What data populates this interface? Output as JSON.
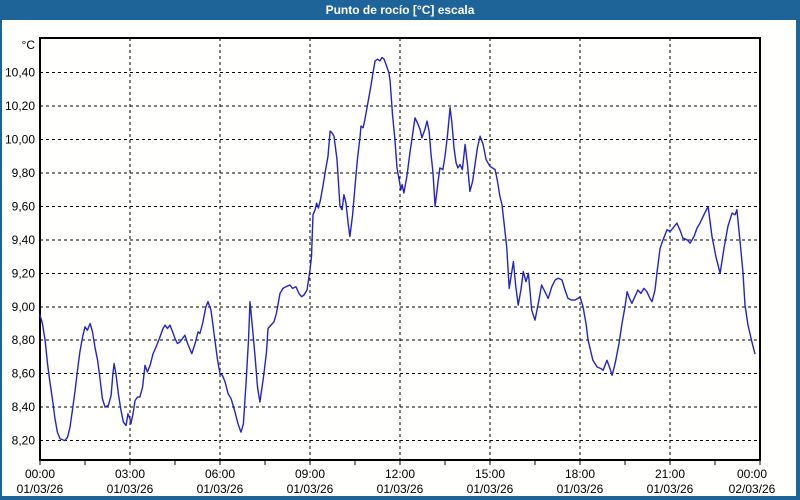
{
  "window": {
    "title": "Punto de rocío [°C] escala"
  },
  "chart_data": {
    "type": "line",
    "title": "Punto de rocío [°C] escala",
    "unit_label": "°C",
    "legend_position": "none",
    "grid": true,
    "y_axis": {
      "min": 8.2,
      "max": 10.4,
      "step": 0.2,
      "tick_labels": [
        "10,40",
        "10,20",
        "10,00",
        "9,80",
        "9,60",
        "9,40",
        "9,20",
        "9,00",
        "8,80",
        "8,60",
        "8,40",
        "8,20"
      ]
    },
    "x_axis": {
      "minor_tick_interval_hours": 1.5,
      "ticks": [
        {
          "hour": 0,
          "time": "00:00",
          "date": "01/03/26"
        },
        {
          "hour": 3,
          "time": "03:00",
          "date": "01/03/26"
        },
        {
          "hour": 6,
          "time": "06:00",
          "date": "01/03/26"
        },
        {
          "hour": 9,
          "time": "09:00",
          "date": "01/03/26"
        },
        {
          "hour": 12,
          "time": "12:00",
          "date": "01/03/26"
        },
        {
          "hour": 15,
          "time": "15:00",
          "date": "01/03/26"
        },
        {
          "hour": 18,
          "time": "18:00",
          "date": "01/03/26"
        },
        {
          "hour": 21,
          "time": "21:00",
          "date": "01/03/26"
        },
        {
          "hour": 24,
          "time": "00:00",
          "date": "02/03/26"
        }
      ]
    },
    "colors": {
      "line": "#2323c8",
      "grid": "#000000",
      "frame": "#000000",
      "titlebar": "#1e6499",
      "title_text": "#ffffff",
      "background": "#fffffe",
      "text": "#000000"
    },
    "series": [
      {
        "name": "Punto de rocío",
        "points": [
          [
            0,
            8.95
          ],
          [
            0.08,
            8.9
          ],
          [
            0.17,
            8.8
          ],
          [
            0.25,
            8.66
          ],
          [
            0.33,
            8.55
          ],
          [
            0.42,
            8.44
          ],
          [
            0.5,
            8.33
          ],
          [
            0.58,
            8.25
          ],
          [
            0.67,
            8.21
          ],
          [
            0.83,
            8.2
          ],
          [
            0.92,
            8.22
          ],
          [
            1,
            8.28
          ],
          [
            1.08,
            8.38
          ],
          [
            1.17,
            8.5
          ],
          [
            1.25,
            8.62
          ],
          [
            1.33,
            8.73
          ],
          [
            1.42,
            8.82
          ],
          [
            1.5,
            8.88
          ],
          [
            1.58,
            8.86
          ],
          [
            1.67,
            8.9
          ],
          [
            1.75,
            8.85
          ],
          [
            1.83,
            8.76
          ],
          [
            1.92,
            8.68
          ],
          [
            2,
            8.57
          ],
          [
            2.08,
            8.45
          ],
          [
            2.17,
            8.4
          ],
          [
            2.28,
            8.41
          ],
          [
            2.37,
            8.47
          ],
          [
            2.43,
            8.6
          ],
          [
            2.47,
            8.66
          ],
          [
            2.53,
            8.6
          ],
          [
            2.62,
            8.47
          ],
          [
            2.7,
            8.38
          ],
          [
            2.78,
            8.31
          ],
          [
            2.87,
            8.29
          ],
          [
            2.93,
            8.36
          ],
          [
            3,
            8.33
          ],
          [
            3.03,
            8.3
          ],
          [
            3.1,
            8.36
          ],
          [
            3.17,
            8.44
          ],
          [
            3.25,
            8.46
          ],
          [
            3.33,
            8.46
          ],
          [
            3.42,
            8.52
          ],
          [
            3.5,
            8.65
          ],
          [
            3.58,
            8.61
          ],
          [
            3.67,
            8.65
          ],
          [
            3.77,
            8.72
          ],
          [
            3.87,
            8.76
          ],
          [
            4,
            8.82
          ],
          [
            4.1,
            8.87
          ],
          [
            4.17,
            8.89
          ],
          [
            4.25,
            8.87
          ],
          [
            4.33,
            8.89
          ],
          [
            4.42,
            8.85
          ],
          [
            4.5,
            8.81
          ],
          [
            4.58,
            8.78
          ],
          [
            4.67,
            8.79
          ],
          [
            4.83,
            8.83
          ],
          [
            4.92,
            8.78
          ],
          [
            5.06,
            8.72
          ],
          [
            5.17,
            8.78
          ],
          [
            5.27,
            8.85
          ],
          [
            5.33,
            8.84
          ],
          [
            5.42,
            8.9
          ],
          [
            5.53,
            9
          ],
          [
            5.6,
            9.03
          ],
          [
            5.7,
            8.98
          ],
          [
            5.83,
            8.8
          ],
          [
            5.92,
            8.68
          ],
          [
            6,
            8.6
          ],
          [
            6.08,
            8.59
          ],
          [
            6.17,
            8.55
          ],
          [
            6.27,
            8.48
          ],
          [
            6.37,
            8.45
          ],
          [
            6.5,
            8.37
          ],
          [
            6.6,
            8.3
          ],
          [
            6.7,
            8.25
          ],
          [
            6.78,
            8.3
          ],
          [
            6.87,
            8.55
          ],
          [
            6.95,
            8.8
          ],
          [
            7,
            9.03
          ],
          [
            7.08,
            8.88
          ],
          [
            7.17,
            8.7
          ],
          [
            7.25,
            8.52
          ],
          [
            7.33,
            8.43
          ],
          [
            7.45,
            8.58
          ],
          [
            7.55,
            8.73
          ],
          [
            7.6,
            8.87
          ],
          [
            7.7,
            8.89
          ],
          [
            7.8,
            8.91
          ],
          [
            7.88,
            8.96
          ],
          [
            7.95,
            9.03
          ],
          [
            8,
            9.08
          ],
          [
            8.1,
            9.11
          ],
          [
            8.2,
            9.12
          ],
          [
            8.33,
            9.13
          ],
          [
            8.42,
            9.11
          ],
          [
            8.53,
            9.12
          ],
          [
            8.63,
            9.08
          ],
          [
            8.72,
            9.06
          ],
          [
            8.8,
            9.07
          ],
          [
            8.9,
            9.1
          ],
          [
            9,
            9.22
          ],
          [
            9.05,
            9.3
          ],
          [
            9.1,
            9.55
          ],
          [
            9.17,
            9.58
          ],
          [
            9.22,
            9.62
          ],
          [
            9.28,
            9.59
          ],
          [
            9.35,
            9.64
          ],
          [
            9.43,
            9.72
          ],
          [
            9.52,
            9.82
          ],
          [
            9.6,
            9.9
          ],
          [
            9.67,
            10.05
          ],
          [
            9.73,
            10.04
          ],
          [
            9.8,
            10.02
          ],
          [
            9.9,
            9.88
          ],
          [
            10,
            9.6
          ],
          [
            10.07,
            9.58
          ],
          [
            10.13,
            9.67
          ],
          [
            10.2,
            9.62
          ],
          [
            10.27,
            9.5
          ],
          [
            10.33,
            9.42
          ],
          [
            10.42,
            9.55
          ],
          [
            10.5,
            9.72
          ],
          [
            10.58,
            9.88
          ],
          [
            10.67,
            10.02
          ],
          [
            10.7,
            10.08
          ],
          [
            10.77,
            10.07
          ],
          [
            10.83,
            10.12
          ],
          [
            10.93,
            10.22
          ],
          [
            11.03,
            10.32
          ],
          [
            11.1,
            10.4
          ],
          [
            11.17,
            10.47
          ],
          [
            11.25,
            10.48
          ],
          [
            11.33,
            10.47
          ],
          [
            11.4,
            10.49
          ],
          [
            11.47,
            10.48
          ],
          [
            11.55,
            10.44
          ],
          [
            11.63,
            10.4
          ],
          [
            11.67,
            10.35
          ],
          [
            11.75,
            10.15
          ],
          [
            11.83,
            10
          ],
          [
            11.9,
            9.83
          ],
          [
            11.97,
            9.76
          ],
          [
            12.03,
            9.7
          ],
          [
            12.07,
            9.73
          ],
          [
            12.13,
            9.68
          ],
          [
            12.23,
            9.78
          ],
          [
            12.33,
            9.92
          ],
          [
            12.42,
            10.03
          ],
          [
            12.5,
            10.13
          ],
          [
            12.58,
            10.1
          ],
          [
            12.67,
            10.06
          ],
          [
            12.73,
            10.01
          ],
          [
            12.83,
            10.06
          ],
          [
            12.9,
            10.11
          ],
          [
            12.97,
            10.05
          ],
          [
            13.03,
            9.92
          ],
          [
            13.1,
            9.8
          ],
          [
            13.17,
            9.6
          ],
          [
            13.27,
            9.75
          ],
          [
            13.33,
            9.83
          ],
          [
            13.43,
            9.82
          ],
          [
            13.5,
            9.9
          ],
          [
            13.58,
            10.02
          ],
          [
            13.67,
            10.19
          ],
          [
            13.73,
            10.1
          ],
          [
            13.8,
            9.95
          ],
          [
            13.87,
            9.86
          ],
          [
            13.93,
            9.83
          ],
          [
            14,
            9.85
          ],
          [
            14.08,
            9.82
          ],
          [
            14.17,
            9.97
          ],
          [
            14.25,
            9.85
          ],
          [
            14.33,
            9.69
          ],
          [
            14.42,
            9.75
          ],
          [
            14.5,
            9.85
          ],
          [
            14.58,
            9.95
          ],
          [
            14.67,
            10.02
          ],
          [
            14.77,
            9.97
          ],
          [
            14.87,
            9.88
          ],
          [
            15,
            9.84
          ],
          [
            15.08,
            9.83
          ],
          [
            15.17,
            9.82
          ],
          [
            15.25,
            9.75
          ],
          [
            15.33,
            9.66
          ],
          [
            15.4,
            9.61
          ],
          [
            15.5,
            9.45
          ],
          [
            15.56,
            9.35
          ],
          [
            15.64,
            9.11
          ],
          [
            15.78,
            9.27
          ],
          [
            15.86,
            9.12
          ],
          [
            15.94,
            9.01
          ],
          [
            16.03,
            9.1
          ],
          [
            16.11,
            9.21
          ],
          [
            16.2,
            9.15
          ],
          [
            16.28,
            9.2
          ],
          [
            16.39,
            8.98
          ],
          [
            16.5,
            8.92
          ],
          [
            16.61,
            9.02
          ],
          [
            16.72,
            9.13
          ],
          [
            16.83,
            9.09
          ],
          [
            16.94,
            9.05
          ],
          [
            17.06,
            9.12
          ],
          [
            17.17,
            9.16
          ],
          [
            17.28,
            9.17
          ],
          [
            17.4,
            9.16
          ],
          [
            17.5,
            9.1
          ],
          [
            17.6,
            9.05
          ],
          [
            17.72,
            9.04
          ],
          [
            17.83,
            9.04
          ],
          [
            17.93,
            9.05
          ],
          [
            18,
            9.06
          ],
          [
            18.1,
            9
          ],
          [
            18.2,
            8.9
          ],
          [
            18.27,
            8.8
          ],
          [
            18.43,
            8.68
          ],
          [
            18.57,
            8.64
          ],
          [
            18.7,
            8.63
          ],
          [
            18.77,
            8.62
          ],
          [
            18.9,
            8.68
          ],
          [
            19,
            8.63
          ],
          [
            19.07,
            8.59
          ],
          [
            19.17,
            8.66
          ],
          [
            19.3,
            8.78
          ],
          [
            19.4,
            8.9
          ],
          [
            19.5,
            9
          ],
          [
            19.57,
            9.09
          ],
          [
            19.65,
            9.05
          ],
          [
            19.73,
            9.02
          ],
          [
            19.83,
            9.06
          ],
          [
            19.93,
            9.1
          ],
          [
            20.03,
            9.08
          ],
          [
            20.13,
            9.11
          ],
          [
            20.23,
            9.09
          ],
          [
            20.33,
            9.05
          ],
          [
            20.4,
            9.03
          ],
          [
            20.5,
            9.1
          ],
          [
            20.57,
            9.21
          ],
          [
            20.67,
            9.35
          ],
          [
            20.77,
            9.4
          ],
          [
            20.9,
            9.46
          ],
          [
            21,
            9.45
          ],
          [
            21.1,
            9.47
          ],
          [
            21.23,
            9.5
          ],
          [
            21.33,
            9.46
          ],
          [
            21.43,
            9.41
          ],
          [
            21.57,
            9.4
          ],
          [
            21.67,
            9.38
          ],
          [
            21.8,
            9.42
          ],
          [
            21.9,
            9.47
          ],
          [
            22,
            9.5
          ],
          [
            22.13,
            9.55
          ],
          [
            22.27,
            9.6
          ],
          [
            22.4,
            9.42
          ],
          [
            22.53,
            9.3
          ],
          [
            22.67,
            9.2
          ],
          [
            22.8,
            9.35
          ],
          [
            22.93,
            9.48
          ],
          [
            23.07,
            9.56
          ],
          [
            23.17,
            9.55
          ],
          [
            23.23,
            9.58
          ],
          [
            23.33,
            9.4
          ],
          [
            23.43,
            9.21
          ],
          [
            23.5,
            9.01
          ],
          [
            23.6,
            8.89
          ],
          [
            23.73,
            8.79
          ],
          [
            23.83,
            8.72
          ]
        ]
      }
    ]
  }
}
